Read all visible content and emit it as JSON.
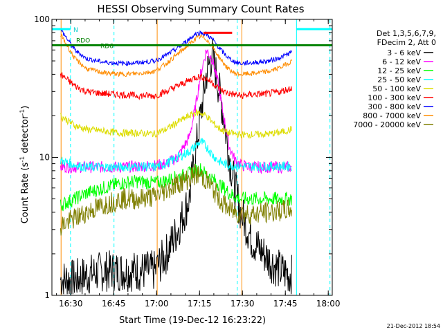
{
  "chart_data": {
    "type": "line",
    "title": "HESSI Observing Summary Count Rates",
    "xlabel": "Start Time (19-Dec-12 16:23:22)",
    "ylabel": "Count Rate (s⁻¹ detector⁻¹)",
    "ylabel_main": "Count Rate (s",
    "ylabel_sup1": "-1",
    "ylabel_mid": " detector",
    "ylabel_sup2": "-1",
    "ylabel_end": ")",
    "x_unit": "minutes since 16:23:22",
    "xlim": [
      0,
      98
    ],
    "ylim": [
      1,
      100
    ],
    "yscale": "log",
    "x_ticks": [
      {
        "x": 6.6,
        "label": "16:30"
      },
      {
        "x": 21.6,
        "label": "16:45"
      },
      {
        "x": 36.6,
        "label": "17:00"
      },
      {
        "x": 51.6,
        "label": "17:15"
      },
      {
        "x": 66.6,
        "label": "17:30"
      },
      {
        "x": 81.6,
        "label": "17:45"
      },
      {
        "x": 96.6,
        "label": "18:00"
      }
    ],
    "y_ticks": [
      {
        "y": 1,
        "label": "1"
      },
      {
        "y": 10,
        "label": "10"
      },
      {
        "y": 100,
        "label": "100"
      }
    ],
    "legend_placement": "right",
    "legend_header": [
      "Det 1,3,5,6,7,9,",
      "FDecim 2, Att 0"
    ],
    "series": [
      {
        "name": "3 - 6 keV",
        "color": "#000000",
        "x": [
          3,
          8,
          12,
          18,
          24,
          30,
          36,
          40,
          44,
          48,
          50,
          52,
          54,
          56,
          58,
          60,
          62,
          64,
          66,
          70,
          76,
          80,
          84
        ],
        "y": [
          1.3,
          1.3,
          1.4,
          1.5,
          1.5,
          1.5,
          1.5,
          2,
          3,
          5,
          10,
          20,
          40,
          55,
          35,
          20,
          10,
          6,
          4,
          2.5,
          1.8,
          1.5,
          1.4
        ]
      },
      {
        "name": "6 - 12 keV",
        "color": "#ff00ff",
        "x": [
          3,
          8,
          12,
          18,
          24,
          30,
          36,
          40,
          44,
          48,
          50,
          52,
          54,
          56,
          58,
          60,
          62,
          64,
          66,
          70,
          76,
          80,
          84
        ],
        "y": [
          8.5,
          8.5,
          8.5,
          8.5,
          8.5,
          8.6,
          8.7,
          9,
          10,
          14,
          22,
          40,
          60,
          52,
          35,
          20,
          12,
          9.5,
          8.8,
          8.5,
          8.5,
          8.5,
          8.5
        ]
      },
      {
        "name": "12 - 25 keV",
        "color": "#00ff00",
        "x": [
          3,
          8,
          12,
          18,
          24,
          30,
          36,
          40,
          44,
          48,
          50,
          52,
          54,
          56,
          58,
          60,
          62,
          64,
          66,
          70,
          76,
          80,
          84
        ],
        "y": [
          4.5,
          5,
          5.5,
          6,
          6.5,
          6.7,
          6.5,
          6.8,
          7.2,
          7.6,
          8,
          8.2,
          7.5,
          7,
          6.5,
          6,
          5.5,
          5.2,
          5,
          5,
          5,
          5,
          5
        ]
      },
      {
        "name": "25 - 50 keV",
        "color": "#00ffff",
        "x": [
          3,
          8,
          12,
          18,
          24,
          30,
          36,
          40,
          44,
          48,
          50,
          52,
          54,
          56,
          58,
          60,
          62,
          64,
          66,
          70,
          76,
          80,
          84
        ],
        "y": [
          9.5,
          8.8,
          8.5,
          8.5,
          8.5,
          8.6,
          8.5,
          9,
          10,
          11,
          12,
          13,
          12,
          10.5,
          9.5,
          9,
          8.8,
          8.7,
          8.6,
          8.6,
          8.6,
          8.6,
          8.6
        ]
      },
      {
        "name": "50 - 100 keV",
        "color": "#dddd00",
        "x": [
          3,
          8,
          12,
          18,
          24,
          30,
          36,
          40,
          44,
          48,
          50,
          52,
          54,
          56,
          58,
          60,
          62,
          64,
          66,
          70,
          76,
          80,
          84
        ],
        "y": [
          20,
          17,
          16,
          15.5,
          15,
          15,
          14.8,
          16,
          18,
          20,
          21,
          21,
          20,
          18,
          16.5,
          15.5,
          15,
          14.8,
          14.6,
          14.6,
          14.8,
          15.2,
          16
        ]
      },
      {
        "name": "100 - 300 keV",
        "color": "#ff0000",
        "x": [
          3,
          8,
          12,
          18,
          24,
          30,
          36,
          40,
          44,
          48,
          50,
          52,
          54,
          56,
          58,
          60,
          62,
          64,
          66,
          70,
          76,
          80,
          84
        ],
        "y": [
          40,
          33,
          30,
          29,
          28.5,
          28,
          28,
          30,
          33,
          36,
          38,
          38.5,
          37,
          35,
          32,
          30,
          29,
          28.5,
          28,
          28.5,
          29,
          30,
          32
        ]
      },
      {
        "name": "300 - 800 keV",
        "color": "#0000ff",
        "x": [
          3,
          8,
          12,
          18,
          24,
          30,
          36,
          40,
          44,
          48,
          50,
          52,
          54,
          56,
          58,
          60,
          62,
          64,
          66,
          70,
          76,
          80,
          84
        ],
        "y": [
          85,
          60,
          52,
          49,
          48,
          48.5,
          50,
          55,
          62,
          72,
          78,
          80,
          78,
          72,
          64,
          57,
          52,
          49,
          48,
          48.5,
          50,
          53,
          58
        ]
      },
      {
        "name": "800 - 7000 keV",
        "color": "#ff8c00",
        "x": [
          3,
          8,
          12,
          18,
          24,
          30,
          36,
          40,
          44,
          48,
          50,
          52,
          54,
          56,
          58,
          60,
          62,
          64,
          66,
          70,
          76,
          80,
          84
        ],
        "y": [
          78,
          52,
          44,
          41,
          40,
          40.5,
          42,
          48,
          56,
          66,
          72,
          75,
          72,
          64,
          55,
          48,
          43,
          40.5,
          40,
          40.5,
          42,
          45,
          50
        ]
      },
      {
        "name": "7000 - 20000 keV",
        "color": "#7f7f00",
        "x": [
          3,
          8,
          12,
          18,
          24,
          30,
          36,
          40,
          44,
          48,
          50,
          52,
          54,
          56,
          58,
          60,
          62,
          64,
          66,
          70,
          76,
          80,
          84
        ],
        "y": [
          3.2,
          3.6,
          4,
          4.5,
          5,
          5,
          5.2,
          5.8,
          6.5,
          7,
          7.5,
          7.4,
          6.8,
          6,
          5.2,
          4.6,
          4.2,
          4,
          3.9,
          3.9,
          4,
          4.1,
          4.2
        ]
      }
    ],
    "markers": [
      {
        "label": "N",
        "color": "#00ffff",
        "y": 85,
        "segments": [
          [
            0,
            6.5
          ],
          [
            85.5,
            98
          ]
        ]
      },
      {
        "label": "RDO",
        "color": "#008000",
        "y": 65,
        "segments": [
          [
            0,
            98
          ]
        ]
      },
      {
        "label": "RD6",
        "color": "#008000",
        "y": 65,
        "segments": []
      },
      {
        "label": "",
        "color": "#ff0000",
        "y": 80,
        "segments": [
          [
            53,
            63
          ]
        ]
      }
    ],
    "vlines_solid": [
      {
        "x": 3.2,
        "color": "#ff8c00"
      },
      {
        "x": 36.8,
        "color": "#ff8c00"
      },
      {
        "x": 66.4,
        "color": "#ff8c00"
      },
      {
        "x": 85.5,
        "color": "#00ffff"
      }
    ],
    "vlines_dashed": [
      {
        "x": 6.5,
        "color": "#00ffff"
      },
      {
        "x": 21.7,
        "color": "#00ffff"
      },
      {
        "x": 64.8,
        "color": "#00ffff"
      },
      {
        "x": 97.2,
        "color": "#00ffff"
      }
    ],
    "footer_timestamp": "21-Dec-2012 18:54"
  }
}
